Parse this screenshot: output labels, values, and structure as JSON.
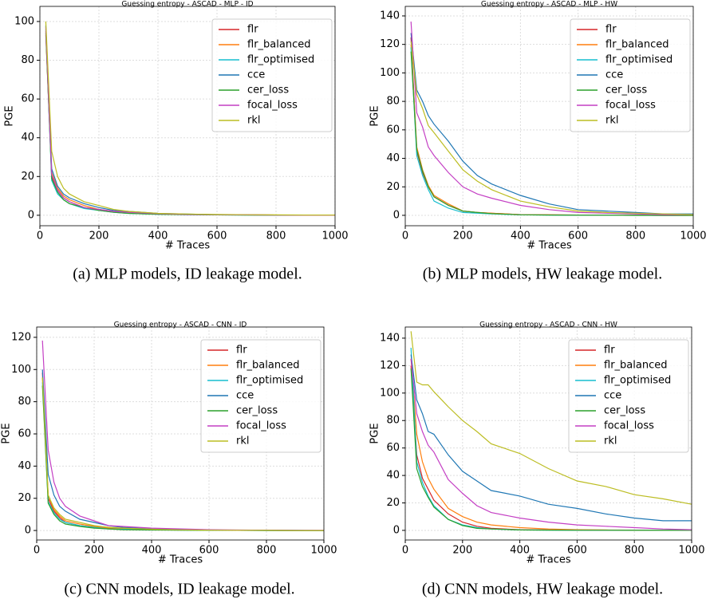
{
  "chart_data": [
    {
      "type": "line",
      "title": "Guessing entropy - ASCAD - MLP - ID",
      "caption": "(a) MLP models, ID leakage model.",
      "xlabel": "# Traces",
      "ylabel": "PGE",
      "grid": true,
      "legend": "upper right",
      "x": [
        20,
        40,
        60,
        80,
        100,
        150,
        200,
        250,
        300,
        400,
        500,
        600,
        700,
        800,
        900,
        1000
      ],
      "xlim": [
        0,
        1000
      ],
      "xticks": [
        0,
        200,
        400,
        600,
        800,
        1000
      ],
      "ylim": [
        -5.4,
        107.8
      ],
      "yticks": [
        0,
        20,
        40,
        60,
        80,
        100
      ],
      "series": [
        {
          "name": "flr",
          "color": "#d62728",
          "values": [
            95,
            20,
            13,
            9,
            7,
            4,
            3,
            2,
            1.5,
            0.8,
            0.5,
            0.3,
            0.2,
            0.1,
            0.1,
            0
          ]
        },
        {
          "name": "flr_balanced",
          "color": "#ff7f0e",
          "values": [
            93,
            22,
            14,
            10,
            8,
            5,
            3,
            2,
            1.5,
            0.8,
            0.5,
            0.3,
            0.2,
            0.1,
            0.1,
            0
          ]
        },
        {
          "name": "flr_optimised",
          "color": "#17becf",
          "values": [
            96,
            18,
            11,
            8,
            6,
            3.5,
            2.5,
            1.5,
            1,
            0.5,
            0.3,
            0.2,
            0.1,
            0.1,
            0,
            0
          ]
        },
        {
          "name": "cce",
          "color": "#1f77b4",
          "values": [
            98,
            24,
            15,
            11,
            9,
            6,
            4,
            2.5,
            2,
            1,
            0.6,
            0.3,
            0.2,
            0.1,
            0.1,
            0.1
          ]
        },
        {
          "name": "cer_loss",
          "color": "#2ca02c",
          "values": [
            94,
            19,
            12,
            8,
            6,
            4,
            2.5,
            1.5,
            1,
            0.5,
            0.3,
            0.2,
            0.1,
            0.1,
            0,
            0
          ]
        },
        {
          "name": "focal_loss",
          "color": "#c43fc4",
          "values": [
            97,
            21,
            13,
            9,
            7,
            4,
            3,
            2,
            1.5,
            0.8,
            0.4,
            0.3,
            0.2,
            0.1,
            0,
            0
          ]
        },
        {
          "name": "rkl",
          "color": "#bcbd22",
          "values": [
            100,
            33,
            20,
            14,
            11,
            7,
            5,
            3,
            2,
            1,
            0.6,
            0.4,
            0.3,
            0.2,
            0.1,
            0.1
          ]
        }
      ]
    },
    {
      "type": "line",
      "title": "Guessing entropy - ASCAD - MLP - HW",
      "caption": "(b) MLP models, HW leakage model.",
      "xlabel": "# Traces",
      "ylabel": "PGE",
      "grid": true,
      "legend": "upper right",
      "x": [
        20,
        40,
        60,
        80,
        100,
        150,
        200,
        250,
        300,
        400,
        500,
        600,
        700,
        800,
        900,
        1000
      ],
      "xlim": [
        0,
        1000
      ],
      "xticks": [
        0,
        200,
        400,
        600,
        800,
        1000
      ],
      "ylim": [
        -7.3,
        146.7
      ],
      "yticks": [
        0,
        20,
        40,
        60,
        80,
        100,
        120,
        140
      ],
      "series": [
        {
          "name": "flr",
          "color": "#d62728",
          "values": [
            125,
            45,
            30,
            20,
            13,
            7,
            3,
            2,
            1.5,
            0.5,
            0.3,
            0.2,
            0.1,
            0.1,
            0,
            0
          ]
        },
        {
          "name": "flr_balanced",
          "color": "#ff7f0e",
          "values": [
            120,
            48,
            32,
            21,
            14,
            8,
            3,
            2,
            1.5,
            0.5,
            0.3,
            0.2,
            0.1,
            0.1,
            0,
            0
          ]
        },
        {
          "name": "flr_optimised",
          "color": "#17becf",
          "values": [
            118,
            42,
            28,
            18,
            10,
            5,
            2,
            1.5,
            1,
            0.4,
            0.2,
            0.1,
            0.1,
            0,
            0,
            0
          ]
        },
        {
          "name": "cce",
          "color": "#1f77b4",
          "values": [
            128,
            88,
            80,
            70,
            64,
            52,
            38,
            28,
            22,
            14,
            8,
            4,
            3,
            2,
            1,
            1
          ]
        },
        {
          "name": "cer_loss",
          "color": "#2ca02c",
          "values": [
            115,
            46,
            31,
            20,
            13,
            7,
            3,
            2,
            1.2,
            0.4,
            0.2,
            0.1,
            0.1,
            0,
            0,
            0
          ]
        },
        {
          "name": "focal_loss",
          "color": "#c43fc4",
          "values": [
            136,
            72,
            62,
            48,
            42,
            30,
            20,
            15,
            12,
            7,
            4,
            2,
            1.5,
            1,
            0.5,
            0.5
          ]
        },
        {
          "name": "rkl",
          "color": "#bcbd22",
          "values": [
            122,
            85,
            75,
            63,
            58,
            45,
            32,
            24,
            18,
            10,
            6,
            3,
            2,
            1.5,
            1,
            0.5
          ]
        }
      ]
    },
    {
      "type": "line",
      "title": "Guessing entropy - ASCAD - CNN - ID",
      "caption": "(c) CNN models, ID leakage model.",
      "xlabel": "# Traces",
      "ylabel": "PGE",
      "grid": true,
      "legend": "upper right",
      "x": [
        20,
        40,
        60,
        80,
        100,
        150,
        200,
        250,
        300,
        400,
        500,
        600,
        700,
        800,
        900,
        1000
      ],
      "xlim": [
        0,
        1000
      ],
      "xticks": [
        0,
        200,
        400,
        600,
        800,
        1000
      ],
      "ylim": [
        -5.9,
        126.4
      ],
      "yticks": [
        0,
        20,
        40,
        60,
        80,
        100,
        120
      ],
      "series": [
        {
          "name": "flr",
          "color": "#d62728",
          "values": [
            98,
            20,
            12,
            8,
            5,
            3,
            2,
            1.5,
            1,
            0.5,
            0.3,
            0.2,
            0.1,
            0.1,
            0,
            0
          ]
        },
        {
          "name": "flr_balanced",
          "color": "#ff7f0e",
          "values": [
            95,
            22,
            13,
            9,
            6,
            4,
            2.5,
            1.5,
            1,
            0.5,
            0.3,
            0.2,
            0.1,
            0.1,
            0,
            0
          ]
        },
        {
          "name": "flr_optimised",
          "color": "#17becf",
          "values": [
            92,
            18,
            11,
            7,
            5,
            3,
            2,
            1,
            0.8,
            0.4,
            0.2,
            0.1,
            0.1,
            0,
            0,
            0
          ]
        },
        {
          "name": "cce",
          "color": "#1f77b4",
          "values": [
            100,
            35,
            22,
            15,
            12,
            7,
            5,
            3,
            2,
            1,
            0.5,
            0.3,
            0.2,
            0.1,
            0.1,
            0
          ]
        },
        {
          "name": "cer_loss",
          "color": "#2ca02c",
          "values": [
            90,
            17,
            10,
            6,
            4,
            2.5,
            1.5,
            1,
            0.5,
            0.3,
            0.2,
            0.1,
            0.1,
            0,
            0,
            0
          ]
        },
        {
          "name": "focal_loss",
          "color": "#c43fc4",
          "values": [
            118,
            50,
            30,
            20,
            15,
            9,
            6,
            3,
            2.5,
            1.5,
            1,
            0.5,
            0.3,
            0.2,
            0.1,
            0.1
          ]
        },
        {
          "name": "rkl",
          "color": "#bcbd22",
          "values": [
            95,
            22,
            14,
            10,
            7,
            5,
            3,
            2,
            1.5,
            0.8,
            0.4,
            0.2,
            0.1,
            0.1,
            0,
            0
          ]
        }
      ]
    },
    {
      "type": "line",
      "title": "Guessing entropy - ASCAD - CNN - HW",
      "caption": "(d) CNN models, HW leakage model.",
      "xlabel": "# Traces",
      "ylabel": "PGE",
      "grid": true,
      "legend": "upper right",
      "x": [
        20,
        40,
        60,
        80,
        100,
        150,
        200,
        250,
        300,
        400,
        500,
        600,
        700,
        800,
        900,
        1000
      ],
      "xlim": [
        0,
        1000
      ],
      "xticks": [
        0,
        200,
        400,
        600,
        800,
        1000
      ],
      "ylim": [
        -7.0,
        148.1
      ],
      "yticks": [
        0,
        20,
        40,
        60,
        80,
        100,
        120,
        140
      ],
      "series": [
        {
          "name": "flr",
          "color": "#d62728",
          "values": [
            120,
            55,
            38,
            30,
            22,
            12,
            6,
            3,
            1.5,
            0.5,
            0.3,
            0.2,
            0.1,
            0.1,
            0,
            0
          ]
        },
        {
          "name": "flr_balanced",
          "color": "#ff7f0e",
          "values": [
            125,
            70,
            50,
            38,
            30,
            16,
            10,
            6,
            4,
            2,
            1,
            0.5,
            0.3,
            0.2,
            0.1,
            0.1
          ]
        },
        {
          "name": "flr_optimised",
          "color": "#17becf",
          "values": [
            133,
            50,
            35,
            25,
            18,
            8,
            4,
            2,
            1,
            0.3,
            0.2,
            0.1,
            0.1,
            0,
            0,
            0
          ]
        },
        {
          "name": "cce",
          "color": "#1f77b4",
          "values": [
            128,
            95,
            85,
            72,
            70,
            55,
            43,
            36,
            29,
            25,
            19,
            16,
            12,
            9,
            7,
            7
          ]
        },
        {
          "name": "cer_loss",
          "color": "#2ca02c",
          "values": [
            118,
            45,
            32,
            24,
            17,
            8,
            3.5,
            1.5,
            1,
            0.3,
            0.2,
            0.1,
            0.1,
            0,
            0,
            0
          ]
        },
        {
          "name": "focal_loss",
          "color": "#c43fc4",
          "values": [
            125,
            85,
            72,
            62,
            57,
            37,
            27,
            18,
            13,
            9,
            6,
            4,
            3,
            2,
            1,
            0.5
          ]
        },
        {
          "name": "rkl",
          "color": "#bcbd22",
          "values": [
            145,
            108,
            106,
            106,
            101,
            90,
            80,
            72,
            63,
            56,
            45,
            36,
            32,
            26,
            23,
            19
          ]
        }
      ]
    }
  ]
}
